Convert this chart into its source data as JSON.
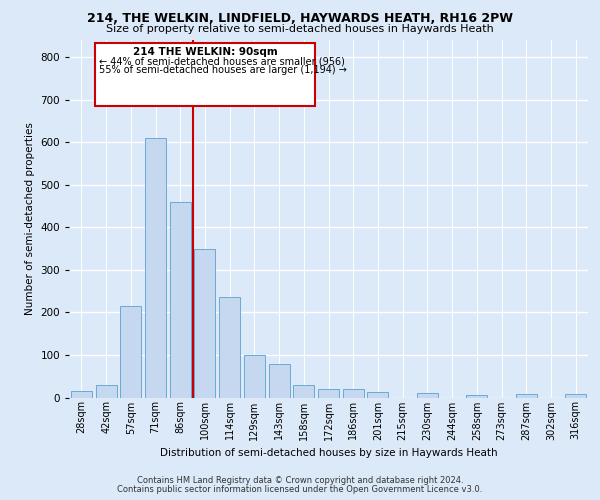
{
  "title1": "214, THE WELKIN, LINDFIELD, HAYWARDS HEATH, RH16 2PW",
  "title2": "Size of property relative to semi-detached houses in Haywards Heath",
  "xlabel": "Distribution of semi-detached houses by size in Haywards Heath",
  "ylabel": "Number of semi-detached properties",
  "categories": [
    "28sqm",
    "42sqm",
    "57sqm",
    "71sqm",
    "86sqm",
    "100sqm",
    "114sqm",
    "129sqm",
    "143sqm",
    "158sqm",
    "172sqm",
    "186sqm",
    "201sqm",
    "215sqm",
    "230sqm",
    "244sqm",
    "258sqm",
    "273sqm",
    "287sqm",
    "302sqm",
    "316sqm"
  ],
  "values": [
    15,
    30,
    215,
    610,
    460,
    350,
    235,
    100,
    78,
    30,
    20,
    20,
    12,
    0,
    10,
    0,
    6,
    0,
    8,
    0,
    8
  ],
  "bar_color": "#c5d8f0",
  "bar_edge_color": "#6aaad4",
  "vline_index": 4.5,
  "annotation_title": "214 THE WELKIN: 90sqm",
  "annotation_line1": "← 44% of semi-detached houses are smaller (956)",
  "annotation_line2": "55% of semi-detached houses are larger (1,194) →",
  "footer1": "Contains HM Land Registry data © Crown copyright and database right 2024.",
  "footer2": "Contains public sector information licensed under the Open Government Licence v3.0.",
  "ylim": [
    0,
    840
  ],
  "yticks": [
    0,
    100,
    200,
    300,
    400,
    500,
    600,
    700,
    800
  ],
  "bg_color": "#dce9f8",
  "plot_bg_color": "#dce9f8",
  "grid_color": "#ffffff",
  "vline_color": "#cc0000",
  "box_edge_color": "#cc0000",
  "title1_fontsize": 9,
  "title2_fontsize": 8,
  "ylabel_fontsize": 7.5,
  "xlabel_fontsize": 7.5,
  "footer_fontsize": 6,
  "tick_fontsize": 7,
  "ytick_fontsize": 7.5
}
